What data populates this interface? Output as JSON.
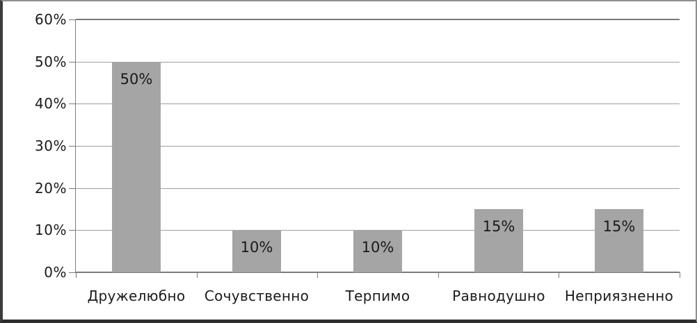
{
  "window": {
    "background": "#ffffff",
    "frame_border_top": "#8f8f8f",
    "frame_border_right": "#8f8f8f",
    "frame_border_left": "#3c3c3c",
    "frame_border_bottom": "#2e2e2e"
  },
  "chart_data": {
    "type": "bar",
    "title": "",
    "xlabel": "",
    "ylabel": "",
    "categories": [
      "Дружелюбно",
      "Сочувственно",
      "Терпимо",
      "Равнодушно",
      "Неприязненно"
    ],
    "values": [
      50,
      10,
      10,
      15,
      15
    ],
    "data_labels": [
      "50%",
      "10%",
      "10%",
      "15%",
      "15%"
    ],
    "ylim": [
      0,
      60
    ],
    "y_tick_step": 10,
    "y_tick_labels": [
      "0%",
      "10%",
      "20%",
      "30%",
      "40%",
      "50%",
      "60%"
    ],
    "grid": true,
    "legend": false,
    "bar_color": "#a5a5a5",
    "gridline_color": "#9e9e9e",
    "axis_color": "#7a7a7a",
    "label_color": "#1a1a1a"
  }
}
